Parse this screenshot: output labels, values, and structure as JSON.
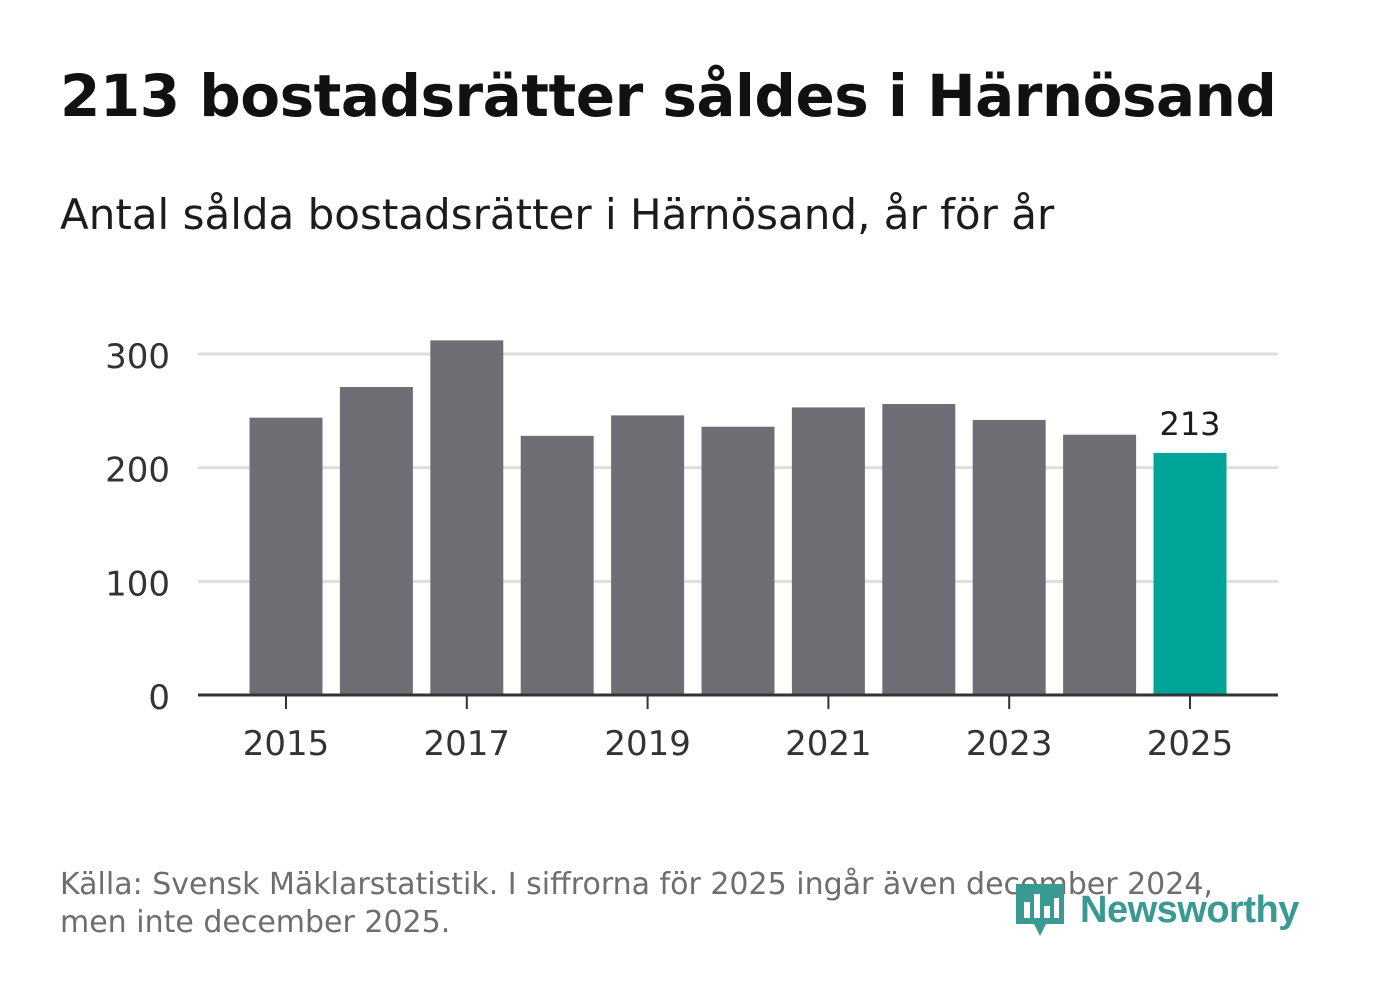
{
  "header": {
    "title": "213 bostadsrätter såldes i Härnösand",
    "subtitle": "Antal sålda bostadsrätter i Härnösand, år för år"
  },
  "footer": {
    "source_line1": "Källa: Svensk Mäklarstatistik. I siffrorna för 2025 ingår även december 2024,",
    "source_line2": "men inte december 2025."
  },
  "brand": {
    "name": "Newsworthy",
    "color": "#3a9a93"
  },
  "colors": {
    "bar": "#6f6e74",
    "highlight": "#00a59a",
    "grid": "#dedede",
    "axis": "#333333",
    "tick_text": "#333333"
  },
  "chart_data": {
    "type": "bar",
    "title": "Antal sålda bostadsrätter i Härnösand, år för år",
    "xlabel": "",
    "ylabel": "",
    "categories": [
      "2015",
      "2016",
      "2017",
      "2018",
      "2019",
      "2020",
      "2021",
      "2022",
      "2023",
      "2024",
      "2025"
    ],
    "values": [
      244,
      271,
      312,
      228,
      246,
      236,
      253,
      256,
      242,
      229,
      213
    ],
    "highlight_index": 10,
    "data_label": "213",
    "ylim": [
      0,
      300
    ],
    "yticks": [
      0,
      100,
      200,
      300
    ],
    "xtick_labels": [
      "2015",
      "2017",
      "2019",
      "2021",
      "2023",
      "2025"
    ],
    "grid": true,
    "legend": "none"
  }
}
